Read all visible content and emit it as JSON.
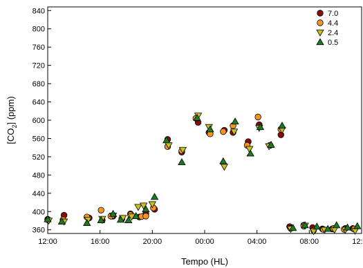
{
  "chart_data": {
    "type": "scatter",
    "xlabel": "Tempo (HL)",
    "ylabel_prefix": "[CO",
    "ylabel_sub": "2",
    "ylabel_suffix": "] (ppm)",
    "xticks": [
      {
        "value": 12,
        "label": "12:00"
      },
      {
        "value": 16,
        "label": "16:00"
      },
      {
        "value": 20,
        "label": "20:00"
      },
      {
        "value": 24,
        "label": "00:00"
      },
      {
        "value": 28,
        "label": "04:00"
      },
      {
        "value": 32,
        "label": "08:00"
      },
      {
        "value": 36,
        "label": "12:00"
      }
    ],
    "xlim": [
      12,
      36
    ],
    "ylim": [
      352,
      848
    ],
    "yticks": [
      360,
      400,
      440,
      480,
      520,
      560,
      600,
      640,
      680,
      720,
      760,
      800,
      840
    ],
    "grid": false,
    "legend_position": "top-right",
    "series": [
      {
        "name": "7.0",
        "marker": "circle",
        "color": "#8b0a0a",
        "x": [
          12.0,
          13.25,
          15.17,
          16.17,
          17.0,
          17.67,
          18.33,
          19.0,
          19.5,
          20.17,
          21.17,
          22.25,
          23.5,
          24.33,
          25.5,
          26.17,
          27.33,
          28.17,
          29.0,
          29.83,
          30.5,
          31.58,
          32.25,
          33.0,
          33.75,
          34.75,
          35.33
        ],
        "y": [
          383,
          392,
          386,
          381,
          390,
          384,
          395,
          388,
          395,
          405,
          558,
          530,
          595,
          573,
          578,
          573,
          553,
          590,
          545,
          568,
          367,
          370,
          365,
          362,
          362,
          363,
          363
        ]
      },
      {
        "name": "4.4",
        "marker": "circle",
        "color": "#f5951f",
        "x": [
          12.0,
          13.17,
          15.0,
          16.08,
          16.83,
          17.67,
          18.33,
          19.17,
          19.5,
          20.08,
          21.17,
          22.25,
          23.33,
          24.42,
          25.42,
          26.17,
          27.25,
          28.08,
          29.0,
          29.83,
          30.58,
          31.58,
          32.33,
          33.08,
          33.83,
          34.67,
          35.42
        ],
        "y": [
          382,
          382,
          388,
          403,
          390,
          385,
          393,
          389,
          390,
          408,
          542,
          533,
          604,
          570,
          575,
          588,
          545,
          607,
          545,
          580,
          363,
          368,
          359,
          361,
          363,
          361,
          362
        ]
      },
      {
        "name": "2.4",
        "marker": "triangle-down",
        "color": "#c8c020",
        "x": [
          12.08,
          13.25,
          15.08,
          16.17,
          17.0,
          17.75,
          18.42,
          18.92,
          19.33,
          20.0,
          21.25,
          22.33,
          23.5,
          24.33,
          25.5,
          26.25,
          27.42,
          28.17,
          28.92,
          29.92,
          30.58,
          31.67,
          32.33,
          33.17,
          33.92,
          34.75,
          35.5
        ],
        "y": [
          380,
          378,
          382,
          384,
          391,
          386,
          389,
          410,
          413,
          416,
          545,
          535,
          610,
          585,
          498,
          575,
          537,
          583,
          543,
          579,
          362,
          369,
          357,
          360,
          360,
          360,
          358
        ]
      },
      {
        "name": "0.5",
        "marker": "triangle-up",
        "color": "#1e7a1e",
        "x": [
          12.0,
          13.08,
          15.0,
          16.08,
          17.0,
          17.58,
          18.17,
          18.75,
          19.5,
          20.17,
          21.08,
          22.25,
          23.42,
          24.42,
          25.42,
          26.33,
          27.5,
          28.25,
          29.08,
          29.92,
          30.75,
          31.67,
          32.58,
          33.42,
          34.08,
          34.92,
          35.67
        ],
        "y": [
          383,
          378,
          375,
          381,
          395,
          382,
          381,
          390,
          405,
          432,
          556,
          508,
          605,
          580,
          510,
          597,
          527,
          585,
          546,
          588,
          364,
          370,
          367,
          362,
          370,
          365,
          368
        ]
      }
    ]
  }
}
